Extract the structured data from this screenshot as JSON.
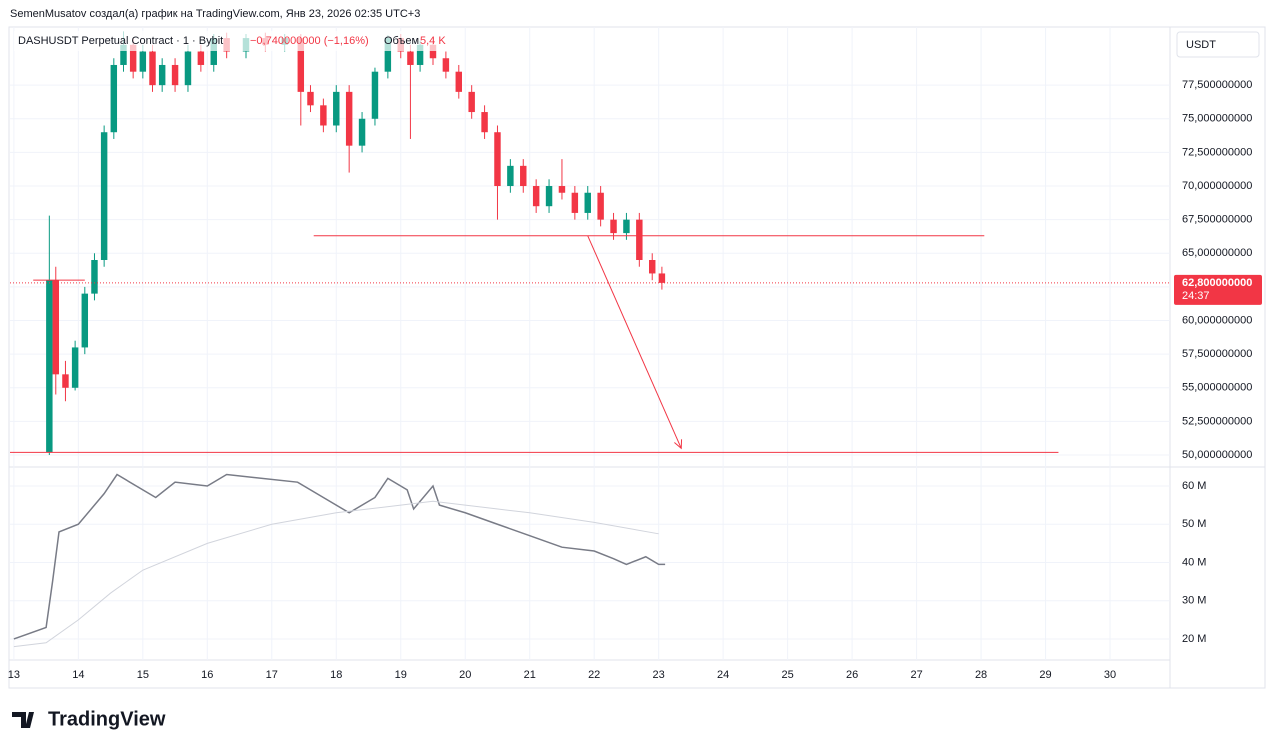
{
  "logo": "TradingView",
  "chart_data": [
    {
      "type": "candlestick",
      "title": "SemenMusatov создал(а) график на TradingView.com, Янв 23, 2026 02:35 UTC+3",
      "symbol": "DASHUSDT Perpetual Contract · 1 · Bybit",
      "change": "−0,740000000 (−1,16%)",
      "volume_label": "Объем",
      "volume_value": "5,4 K",
      "currency": "USDT",
      "last_price": {
        "value": 62.8,
        "label": "62,800000000"
      },
      "countdown": "24:37",
      "up_color": "#089981",
      "down_color": "#f23645",
      "grid": true,
      "x": [
        13.55,
        13.65,
        13.8,
        13.95,
        14.1,
        14.25,
        14.4,
        14.55,
        14.7,
        14.85,
        15.0,
        15.15,
        15.3,
        15.5,
        15.7,
        15.9,
        16.1,
        16.3,
        16.6,
        16.9,
        17.2,
        17.45,
        17.6,
        17.8,
        18.0,
        18.2,
        18.4,
        18.6,
        18.8,
        19.0,
        19.15,
        19.3,
        19.5,
        19.7,
        19.9,
        20.1,
        20.3,
        20.5,
        20.7,
        20.9,
        21.1,
        21.3,
        21.5,
        21.7,
        21.9,
        22.1,
        22.3,
        22.5,
        22.7,
        22.9,
        23.05
      ],
      "open": [
        50.2,
        63,
        56,
        55,
        58,
        62,
        64.5,
        74,
        79,
        80.5,
        78.5,
        80,
        77.5,
        79,
        77.5,
        80,
        79,
        81,
        80,
        81,
        80.5,
        81,
        77,
        76,
        74.5,
        77,
        73,
        75,
        78.5,
        81,
        80,
        79,
        80.5,
        79.5,
        78.5,
        77,
        75.5,
        74,
        70,
        71.5,
        70,
        68.5,
        70,
        69.5,
        68,
        69.5,
        67.5,
        66.5,
        67.5,
        64.5,
        63.5
      ],
      "high": [
        67.8,
        64,
        57,
        58.5,
        62.5,
        65,
        74.5,
        79.5,
        81.5,
        81,
        80.5,
        80.5,
        79.5,
        79.5,
        80.5,
        80.5,
        81.3,
        81.4,
        81.3,
        81.4,
        81.3,
        81.3,
        77.5,
        76.5,
        77.5,
        77.5,
        75.5,
        78.8,
        81.2,
        81.3,
        80.5,
        80.8,
        81,
        80,
        79,
        77.5,
        76,
        74.5,
        72,
        72,
        70.5,
        70.5,
        72,
        70,
        70,
        70,
        68,
        68,
        68,
        65,
        64
      ],
      "low": [
        50,
        54.5,
        54,
        54.8,
        57.5,
        61.5,
        64,
        73.5,
        78.5,
        78,
        78,
        77,
        77,
        77,
        77,
        78.5,
        78.5,
        79.5,
        79.5,
        80,
        80,
        74.5,
        75.5,
        74,
        74,
        71,
        72.5,
        74.5,
        78,
        79.5,
        73.5,
        78.5,
        79,
        78,
        76.5,
        75,
        73.5,
        67.5,
        69.5,
        69.5,
        68,
        68,
        69,
        67.5,
        67.5,
        67,
        66,
        66,
        64,
        63,
        62.3
      ],
      "close": [
        63,
        56,
        55,
        58,
        62,
        64.5,
        74,
        79,
        80.5,
        78.5,
        80,
        77.5,
        79,
        77.5,
        80,
        79,
        81,
        80,
        81,
        80.5,
        81,
        77,
        76,
        74.5,
        77,
        73,
        75,
        78.5,
        81,
        80,
        79,
        80.5,
        79.5,
        78.5,
        77,
        75.5,
        74,
        70,
        71.5,
        70,
        68.5,
        70,
        69.5,
        68,
        69.5,
        67.5,
        66.5,
        67.5,
        64.5,
        63.5,
        62.8
      ],
      "xlim": [
        12.94,
        30.93
      ],
      "xticks": [
        13,
        14,
        15,
        16,
        17,
        18,
        19,
        20,
        21,
        22,
        23,
        24,
        25,
        26,
        27,
        28,
        29,
        30
      ],
      "ylim": [
        49.11,
        81.6
      ],
      "yticks": [
        {
          "value": 50,
          "label": "50,000000000"
        },
        {
          "value": 52.5,
          "label": "52,500000000"
        },
        {
          "value": 55,
          "label": "55,000000000"
        },
        {
          "value": 57.5,
          "label": "57,500000000"
        },
        {
          "value": 60,
          "label": "60,000000000"
        },
        {
          "value": 62.5,
          "label": "62,500000000"
        },
        {
          "value": 65,
          "label": "65,000000000"
        },
        {
          "value": 67.5,
          "label": "67,500000000"
        },
        {
          "value": 70,
          "label": "70,000000000"
        },
        {
          "value": 72.5,
          "label": "72,500000000"
        },
        {
          "value": 75,
          "label": "75,000000000"
        },
        {
          "value": 77.5,
          "label": "77,500000000"
        }
      ],
      "drawings": [
        {
          "color": "#f23645",
          "x": [
            17.65,
            28.05
          ],
          "y": [
            66.3,
            66.3
          ]
        },
        {
          "color": "#f23645",
          "x": [
            12.94,
            29.2
          ],
          "y": [
            50.2,
            50.2
          ]
        },
        {
          "color": "#f23645",
          "x": [
            13.3,
            14.1
          ],
          "y": [
            63,
            63
          ]
        },
        {
          "color": "#f23645",
          "x": [
            21.9,
            23.35
          ],
          "y": [
            66.3,
            50.5
          ],
          "arrow": true
        }
      ]
    },
    {
      "type": "line",
      "xlim": [
        12.94,
        30.93
      ],
      "ylim": [
        14500000,
        64970000
      ],
      "yticks": [
        {
          "value": 20000000,
          "label": "20 M"
        },
        {
          "value": 30000000,
          "label": "30 M"
        },
        {
          "value": 40000000,
          "label": "40 M"
        },
        {
          "value": 50000000,
          "label": "50 M"
        },
        {
          "value": 60000000,
          "label": "60 M"
        }
      ],
      "series": [
        {
          "color": "#787b86",
          "x": [
            13,
            13.5,
            13.6,
            13.7,
            14,
            14.4,
            14.6,
            15.2,
            15.5,
            16,
            16.3,
            17.4,
            17.8,
            18.2,
            18.6,
            18.8,
            19.1,
            19.2,
            19.5,
            19.6,
            20,
            20.5,
            21,
            21.5,
            22,
            22.3,
            22.5,
            22.8,
            23,
            23.1
          ],
          "values": [
            20000000,
            23000000,
            35000000,
            48000000,
            50000000,
            58000000,
            63000000,
            57000000,
            61000000,
            60000000,
            63000000,
            61000000,
            57000000,
            53000000,
            57000000,
            62000000,
            59000000,
            54000000,
            60000000,
            55000000,
            53000000,
            50000000,
            47000000,
            44000000,
            43000000,
            41000000,
            39500000,
            41500000,
            39500000,
            39500000
          ]
        },
        {
          "color": "#d1d4dc",
          "x": [
            13,
            13.5,
            14,
            14.5,
            15,
            16,
            17,
            18,
            19,
            19.5,
            20,
            21,
            22,
            23
          ],
          "values": [
            18000000,
            19000000,
            25000000,
            32000000,
            38000000,
            45000000,
            50000000,
            53000000,
            55000000,
            56000000,
            55000000,
            53000000,
            50500000,
            47500000
          ]
        }
      ]
    }
  ]
}
